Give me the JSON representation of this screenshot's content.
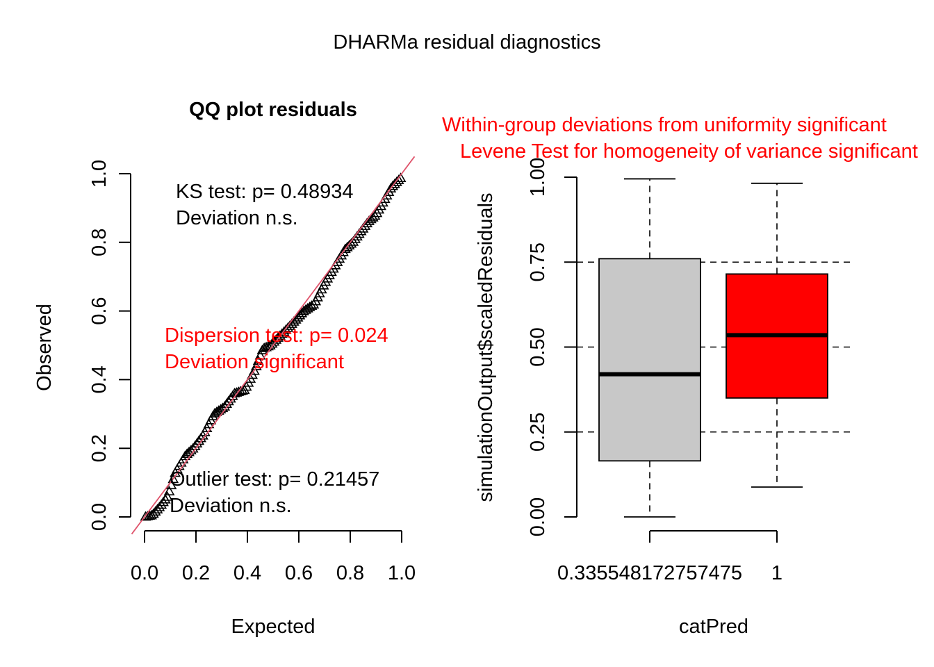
{
  "page": {
    "title": "DHARMa residual diagnostics"
  },
  "colors": {
    "red": "#ff0000",
    "line": "#df536b",
    "box_gray": "#c8c8c8",
    "box_red": "#ff0000"
  },
  "qq": {
    "title": "QQ plot residuals",
    "ks": [
      "KS test: p= 0.48934",
      "Deviation  n.s."
    ],
    "dispersion": [
      "Dispersion test: p= 0.024",
      "Deviation  significant"
    ],
    "outlier": [
      "Outlier test: p= 0.21457",
      "Deviation  n.s."
    ]
  },
  "box": {
    "title_lines": [
      "Within-group deviations from uniformity significant",
      "Levene Test for homogeneity of variance significant"
    ]
  },
  "chart_data": [
    {
      "type": "scatter",
      "title": "QQ plot residuals",
      "xlabel": "Expected",
      "ylabel": "Observed",
      "xlim": [
        0,
        1
      ],
      "ylim": [
        0,
        1
      ],
      "xticks": [
        "0.0",
        "0.2",
        "0.4",
        "0.6",
        "0.8",
        "1.0"
      ],
      "yticks": [
        "0.0",
        "0.2",
        "0.4",
        "0.6",
        "0.8",
        "1.0"
      ],
      "marker": "triangle",
      "reference_line": {
        "slope": 1,
        "intercept": 0
      },
      "curve_knots": [
        [
          0.0,
          0.0
        ],
        [
          0.03,
          0.005
        ],
        [
          0.06,
          0.03
        ],
        [
          0.09,
          0.06
        ],
        [
          0.12,
          0.13
        ],
        [
          0.16,
          0.18
        ],
        [
          0.19,
          0.2
        ],
        [
          0.23,
          0.24
        ],
        [
          0.27,
          0.3
        ],
        [
          0.31,
          0.32
        ],
        [
          0.35,
          0.36
        ],
        [
          0.39,
          0.37
        ],
        [
          0.43,
          0.43
        ],
        [
          0.46,
          0.49
        ],
        [
          0.49,
          0.5
        ],
        [
          0.53,
          0.53
        ],
        [
          0.57,
          0.56
        ],
        [
          0.62,
          0.6
        ],
        [
          0.66,
          0.62
        ],
        [
          0.7,
          0.68
        ],
        [
          0.74,
          0.73
        ],
        [
          0.78,
          0.78
        ],
        [
          0.81,
          0.8
        ],
        [
          0.84,
          0.83
        ],
        [
          0.87,
          0.86
        ],
        [
          0.9,
          0.88
        ],
        [
          0.93,
          0.92
        ],
        [
          0.96,
          0.96
        ],
        [
          1.0,
          0.99
        ]
      ],
      "point_count": 130,
      "legend": "none"
    },
    {
      "type": "box",
      "xlabel": "catPred",
      "ylabel": "simulationOutput$scaledResiduals",
      "ylim": [
        0,
        1
      ],
      "yticks": [
        "0.00",
        "0.25",
        "0.50",
        "0.75",
        "1.00"
      ],
      "reference_lines": [
        0.25,
        0.5,
        0.75
      ],
      "categories": [
        "0.335548172757475",
        "1"
      ],
      "boxes": [
        {
          "category": "0.335548172757475",
          "min": 0.0,
          "q1": 0.165,
          "median": 0.42,
          "q3": 0.76,
          "max": 0.995,
          "color": "#c8c8c8"
        },
        {
          "category": "1",
          "min": 0.088,
          "q1": 0.35,
          "median": 0.535,
          "q3": 0.715,
          "max": 0.982,
          "color": "#ff0000"
        }
      ]
    }
  ]
}
